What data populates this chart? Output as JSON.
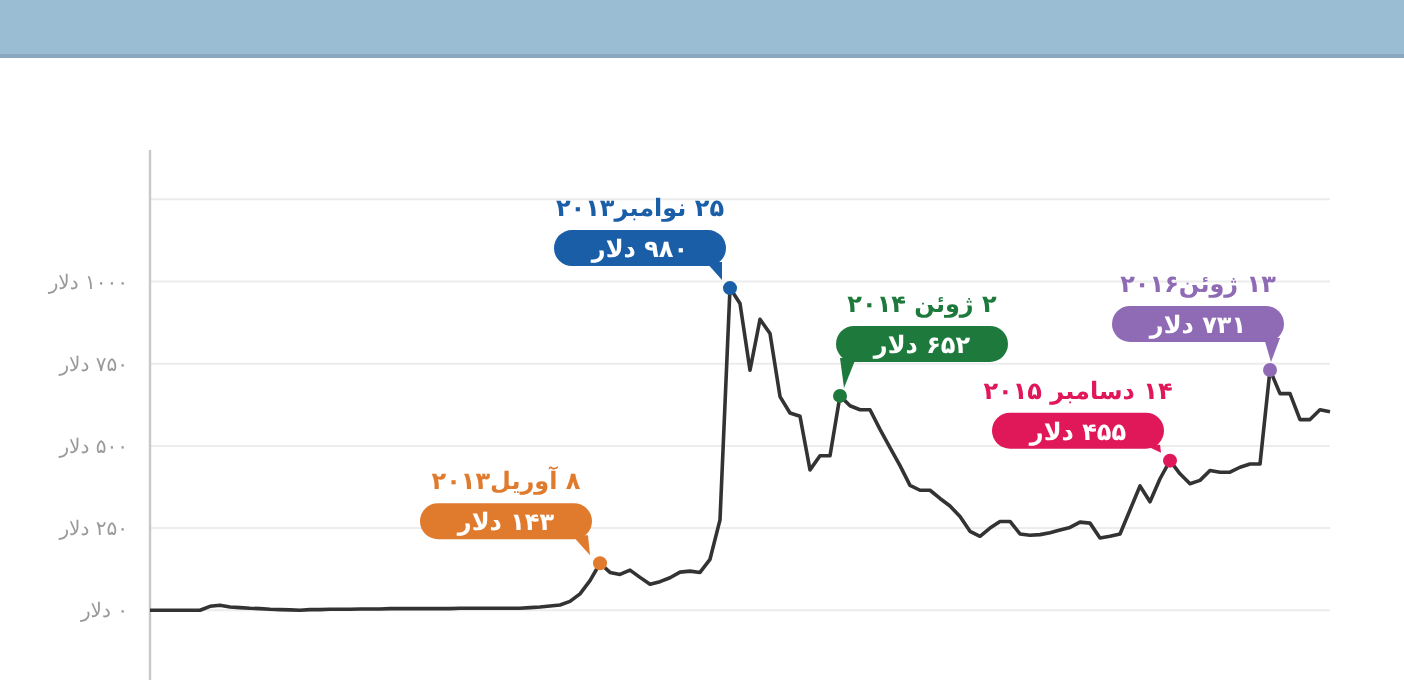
{
  "chart_data": {
    "type": "line",
    "ylim": [
      -200,
      1400
    ],
    "categories": [
      null,
      null,
      null,
      null,
      null,
      null,
      null,
      null,
      null,
      null,
      null,
      null,
      null,
      null,
      null,
      null,
      null,
      null,
      null,
      null,
      null,
      null,
      null,
      null,
      null,
      null,
      null,
      null,
      null,
      null,
      null,
      null,
      null,
      null,
      null,
      null,
      null,
      null,
      null,
      null,
      null,
      null,
      null,
      null,
      null,
      null,
      null,
      null,
      null,
      null,
      null,
      null,
      null,
      null,
      null,
      null,
      null,
      null,
      null,
      null,
      null,
      null,
      null,
      null,
      null,
      null,
      null,
      null,
      null,
      null,
      null,
      null,
      null,
      null,
      null,
      null,
      null,
      null,
      null,
      null,
      null,
      null,
      null,
      null,
      null,
      null,
      null,
      null,
      null,
      null,
      null,
      null,
      null,
      null,
      null,
      null,
      null,
      null,
      null,
      null,
      null,
      null,
      null,
      null,
      null,
      null,
      null,
      null,
      null,
      null,
      null,
      null,
      null,
      null,
      null,
      null,
      null,
      null,
      null
    ],
    "yticks": [
      {
        "value": 0,
        "label": "۰ دلار"
      },
      {
        "value": 250,
        "label": "۲۵۰ دلار"
      },
      {
        "value": 500,
        "label": "۵۰۰ دلار"
      },
      {
        "value": 750,
        "label": "۷۵۰ دلار"
      },
      {
        "value": 1000,
        "label": "۱۰۰۰ دلار"
      },
      {
        "value": 1250,
        "label": null
      }
    ],
    "grid": "y",
    "tick_labels": "y",
    "series": [
      {
        "color": "#333333",
        "value_labels": [
          null,
          null,
          null,
          null,
          null,
          null,
          null,
          null,
          null,
          null,
          null,
          null,
          null,
          null,
          null,
          null,
          null,
          null,
          null,
          null,
          null,
          null,
          null,
          null,
          null,
          null,
          null,
          null,
          null,
          null,
          null,
          null,
          null,
          null,
          null,
          null,
          null,
          null,
          null,
          null,
          null,
          null,
          null,
          null,
          null,
          "۱۴۳ دلار",
          null,
          null,
          null,
          null,
          null,
          null,
          null,
          null,
          null,
          null,
          null,
          null,
          "۹۸۰ دلار",
          null,
          null,
          null,
          null,
          null,
          null,
          null,
          null,
          null,
          null,
          "۶۵۲ دلار",
          null,
          null,
          null,
          null,
          null,
          null,
          null,
          null,
          null,
          null,
          null,
          null,
          null,
          null,
          null,
          null,
          null,
          null,
          null,
          null,
          null,
          null,
          null,
          null,
          null,
          null,
          null,
          null,
          null,
          null,
          null,
          null,
          "۴۵۵ دلار",
          null,
          null,
          null,
          null,
          null,
          null,
          null,
          null,
          null,
          "۷۳۱ دلار",
          null,
          null,
          null,
          null,
          null,
          null
        ],
        "values": [
          0,
          0,
          0,
          0,
          0,
          0,
          12,
          15,
          10,
          8,
          6,
          5,
          3,
          2,
          1,
          0,
          2,
          2,
          3,
          3,
          3,
          4,
          4,
          4,
          5,
          5,
          5,
          5,
          5,
          5,
          5,
          6,
          6,
          6,
          6,
          6,
          6,
          6,
          8,
          10,
          13,
          16,
          27,
          50,
          90,
          143,
          115,
          109,
          122,
          100,
          79,
          87,
          99,
          116,
          119,
          115,
          155,
          275,
          980,
          933,
          730,
          885,
          842,
          650,
          600,
          590,
          427,
          470,
          470,
          652,
          622,
          610,
          610,
          550,
          495,
          440,
          380,
          365,
          365,
          340,
          317,
          285,
          240,
          225,
          250,
          270,
          270,
          232,
          228,
          230,
          236,
          244,
          252,
          268,
          265,
          220,
          225,
          232,
          305,
          378,
          330,
          400,
          455,
          415,
          385,
          395,
          425,
          420,
          420,
          435,
          445,
          445,
          731,
          659,
          659,
          580,
          580,
          610,
          604
        ]
      }
    ],
    "annotations": [
      "۸ آوریل۲۰۱۳",
      "۲۵ نوامبر۲۰۱۳",
      "۲ ژوئن ۲۰۱۴",
      "۱۴ دسامبر ۲۰۱۵",
      "۱۳ ژوئن۲۰۱۶"
    ]
  }
}
